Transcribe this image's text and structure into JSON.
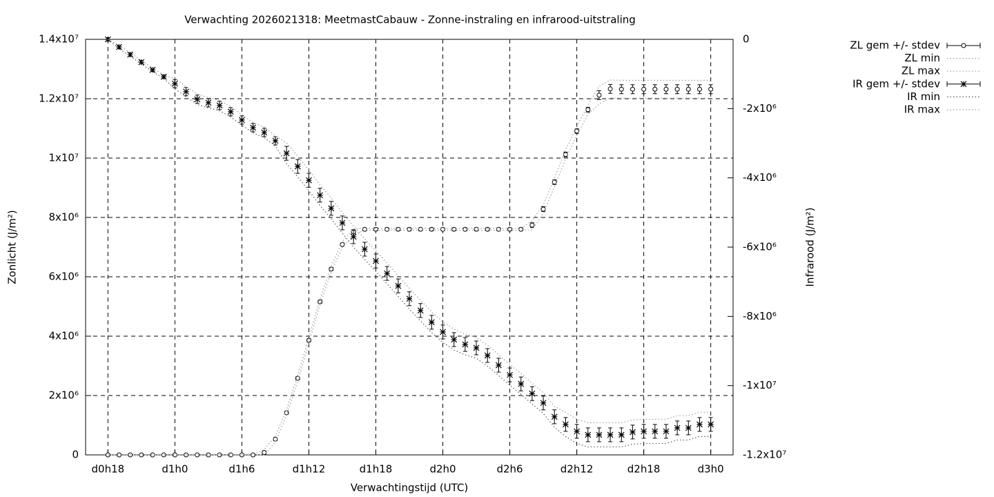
{
  "chart_data": {
    "type": "line",
    "title": "Verwachting 2026021318: MeetmastCabauw - Zonne-instraling en infrarood-uitstraling",
    "xlabel": "Verwachtingstijd (UTC)",
    "ylabel": "Zonlicht (J/m²)",
    "y2label": "Infrarood (J/m²)",
    "grid": true,
    "legend": "outside-right",
    "x": [
      18,
      19,
      20,
      21,
      22,
      23,
      24,
      25,
      26,
      27,
      28,
      29,
      30,
      31,
      32,
      33,
      34,
      35,
      36,
      37,
      38,
      39,
      40,
      41,
      42,
      43,
      44,
      45,
      46,
      47,
      48,
      49,
      50,
      51,
      52,
      53,
      54,
      55,
      56,
      57,
      58,
      59,
      60,
      61,
      62,
      63,
      64,
      65,
      66,
      67,
      68,
      69,
      70,
      71,
      72
    ],
    "xlim": [
      16,
      74
    ],
    "xticks": [
      {
        "value": 18,
        "label": "d0h18"
      },
      {
        "value": 24,
        "label": "d1h0"
      },
      {
        "value": 30,
        "label": "d1h6"
      },
      {
        "value": 36,
        "label": "d1h12"
      },
      {
        "value": 42,
        "label": "d1h18"
      },
      {
        "value": 48,
        "label": "d2h0"
      },
      {
        "value": 54,
        "label": "d2h6"
      },
      {
        "value": 60,
        "label": "d2h12"
      },
      {
        "value": 66,
        "label": "d2h18"
      },
      {
        "value": 72,
        "label": "d3h0"
      }
    ],
    "ylim": [
      0,
      14000000
    ],
    "yticks": [
      0,
      {
        "value": 2000000,
        "label": "2x10⁶"
      },
      {
        "value": 4000000,
        "label": "4x10⁶"
      },
      {
        "value": 6000000,
        "label": "6x10⁶"
      },
      {
        "value": 8000000,
        "label": "8x10⁶"
      },
      {
        "value": 10000000,
        "label": "1x10⁷"
      },
      {
        "value": 12000000,
        "label": "1.2x10⁷"
      },
      {
        "value": 14000000,
        "label": "1.4x10⁷"
      }
    ],
    "y2lim": [
      -12000000,
      0
    ],
    "y2ticks": [
      0,
      {
        "value": -2000000,
        "label": "-2x10⁶"
      },
      {
        "value": -4000000,
        "label": "-4x10⁶"
      },
      {
        "value": -6000000,
        "label": "-6x10⁶"
      },
      {
        "value": -8000000,
        "label": "-8x10⁶"
      },
      {
        "value": -10000000,
        "label": "-1x10⁷"
      },
      {
        "value": -12000000,
        "label": "-1.2x10⁷"
      }
    ],
    "series": [
      {
        "name": "ZL gem +/- stdev",
        "color": "#000000",
        "style": "errorbars",
        "marker": "circle",
        "values": [
          0,
          0,
          0,
          0,
          0,
          0,
          0,
          0,
          0,
          0,
          0,
          0,
          0,
          0,
          80000.0,
          530000.0,
          1420000.0,
          2580000.0,
          3860000.0,
          5160000.0,
          6260000.0,
          7090000.0,
          7510000.0,
          7600000.0,
          7600000.0,
          7600000.0,
          7600000.0,
          7600000.0,
          7600000.0,
          7600000.0,
          7600000.0,
          7600000.0,
          7600000.0,
          7600000.0,
          7600000.0,
          7600000.0,
          7600000.0,
          7600000.0,
          7740000.0,
          8280000.0,
          9190000.0,
          10120000.0,
          10910000.0,
          11630000.0,
          12120000.0,
          12330000.0,
          12320000.0,
          12320000.0,
          12320000.0,
          12320000.0,
          12320000.0,
          12320000.0,
          12320000.0,
          12320000.0,
          12320000.0
        ],
        "errors": [
          0,
          0,
          0,
          0,
          0,
          0,
          0,
          0,
          0,
          0,
          0,
          0,
          0,
          0,
          50000.0,
          50000.0,
          50000.0,
          50000.0,
          50000.0,
          50000.0,
          50000.0,
          50000.0,
          50000.0,
          50000.0,
          50000.0,
          50000.0,
          50000.0,
          50000.0,
          50000.0,
          50000.0,
          50000.0,
          50000.0,
          50000.0,
          50000.0,
          50000.0,
          50000.0,
          50000.0,
          50000.0,
          80000.0,
          80000.0,
          80000.0,
          80000.0,
          80000.0,
          80000.0,
          150000.0,
          150000.0,
          150000.0,
          150000.0,
          150000.0,
          150000.0,
          150000.0,
          150000.0,
          150000.0,
          150000.0,
          150000.0
        ]
      },
      {
        "name": "ZL min",
        "color": "#999999",
        "style": "dotted",
        "values": [
          0,
          0,
          0,
          0,
          0,
          0,
          0,
          0,
          0,
          0,
          0,
          0,
          0,
          0,
          0,
          430000.0,
          1320000.0,
          2480000.0,
          3760000.0,
          5060000.0,
          6160000.0,
          6990000.0,
          7410000.0,
          7570000.0,
          7570000.0,
          7570000.0,
          7570000.0,
          7570000.0,
          7570000.0,
          7570000.0,
          7570000.0,
          7570000.0,
          7570000.0,
          7570000.0,
          7570000.0,
          7570000.0,
          7570000.0,
          7570000.0,
          7590000.0,
          8130000.0,
          9040000.0,
          9970000.0,
          10760000.0,
          11480000.0,
          11820000.0,
          12030000.0,
          12020000.0,
          12020000.0,
          12020000.0,
          12020000.0,
          12020000.0,
          12020000.0,
          12020000.0,
          12020000.0,
          12020000.0
        ]
      },
      {
        "name": "ZL max",
        "color": "#999999",
        "style": "dotted",
        "values": [
          0,
          0,
          0,
          0,
          0,
          0,
          0,
          0,
          0,
          0,
          0,
          0,
          0,
          0,
          180000.0,
          630000.0,
          1520000.0,
          2680000.0,
          3960000.0,
          5260000.0,
          6360000.0,
          7190000.0,
          7610000.0,
          7630000.0,
          7630000.0,
          7630000.0,
          7630000.0,
          7630000.0,
          7630000.0,
          7630000.0,
          7630000.0,
          7630000.0,
          7630000.0,
          7630000.0,
          7630000.0,
          7630000.0,
          7630000.0,
          7630000.0,
          7890000.0,
          8430000.0,
          9340000.0,
          10270000.0,
          11060000.0,
          11780000.0,
          12420000.0,
          12630000.0,
          12620000.0,
          12620000.0,
          12620000.0,
          12620000.0,
          12620000.0,
          12620000.0,
          12620000.0,
          12620000.0,
          12620000.0
        ]
      },
      {
        "name": "IR gem +/- stdev",
        "color": "#000000",
        "style": "errorbars",
        "marker": "star",
        "axis": "y2",
        "values": [
          0,
          -220000.0,
          -440000.0,
          -660000.0,
          -880000.0,
          -1080000.0,
          -1280000.0,
          -1510000.0,
          -1730000.0,
          -1830000.0,
          -1910000.0,
          -2090000.0,
          -2330000.0,
          -2550000.0,
          -2690000.0,
          -2930000.0,
          -3290000.0,
          -3670000.0,
          -4070000.0,
          -4500000.0,
          -4880000.0,
          -5300000.0,
          -5700000.0,
          -6060000.0,
          -6400000.0,
          -6760000.0,
          -7120000.0,
          -7490000.0,
          -7830000.0,
          -8170000.0,
          -8450000.0,
          -8670000.0,
          -8810000.0,
          -8910000.0,
          -9130000.0,
          -9410000.0,
          -9690000.0,
          -9950000.0,
          -10230000.0,
          -10500000.0,
          -10900000.0,
          -11120000.0,
          -11320000.0,
          -11420000.0,
          -11420000.0,
          -11420000.0,
          -11420000.0,
          -11340000.0,
          -11320000.0,
          -11320000.0,
          -11320000.0,
          -11220000.0,
          -11220000.0,
          -11120000.0,
          -11120000.0
        ],
        "errors": [
          50000.0,
          50000.0,
          50000.0,
          50000.0,
          50000.0,
          50000.0,
          120000.0,
          120000.0,
          120000.0,
          120000.0,
          120000.0,
          120000.0,
          120000.0,
          120000.0,
          120000.0,
          120000.0,
          200000.0,
          200000.0,
          200000.0,
          200000.0,
          200000.0,
          200000.0,
          200000.0,
          200000.0,
          200000.0,
          200000.0,
          200000.0,
          200000.0,
          200000.0,
          200000.0,
          200000.0,
          200000.0,
          200000.0,
          200000.0,
          200000.0,
          200000.0,
          200000.0,
          200000.0,
          200000.0,
          200000.0,
          200000.0,
          200000.0,
          200000.0,
          200000.0,
          200000.0,
          200000.0,
          200000.0,
          200000.0,
          200000.0,
          200000.0,
          200000.0,
          200000.0,
          200000.0,
          200000.0,
          200000.0
        ]
      },
      {
        "name": "IR min",
        "color": "#555555",
        "style": "dotted",
        "axis": "y2",
        "values": [
          0,
          -270000.0,
          -490000.0,
          -710000.0,
          -930000.0,
          -1130000.0,
          -1430000.0,
          -1660000.0,
          -1880000.0,
          -1980000.0,
          -2060000.0,
          -2240000.0,
          -2480000.0,
          -2700000.0,
          -2840000.0,
          -3080000.0,
          -3590000.0,
          -3970000.0,
          -4370000.0,
          -4800000.0,
          -5180000.0,
          -5600000.0,
          -6000000.0,
          -6360000.0,
          -6700000.0,
          -7060000.0,
          -7420000.0,
          -7790000.0,
          -8130000.0,
          -8470000.0,
          -8750000.0,
          -8970000.0,
          -9110000.0,
          -9210000.0,
          -9430000.0,
          -9710000.0,
          -9990000.0,
          -10250000.0,
          -10530000.0,
          -10800000.0,
          -11200000.0,
          -11470000.0,
          -11670000.0,
          -11770000.0,
          -11770000.0,
          -11770000.0,
          -11770000.0,
          -11690000.0,
          -11670000.0,
          -11670000.0,
          -11670000.0,
          -11570000.0,
          -11570000.0,
          -11470000.0,
          -11470000.0
        ]
      },
      {
        "name": "IR max",
        "color": "#999999",
        "style": "dotted",
        "axis": "y2",
        "values": [
          0,
          -170000.0,
          -390000.0,
          -610000.0,
          -830000.0,
          -1030000.0,
          -1130000.0,
          -1360000.0,
          -1580000.0,
          -1680000.0,
          -1760000.0,
          -1940000.0,
          -2180000.0,
          -2400000.0,
          -2540000.0,
          -2780000.0,
          -2990000.0,
          -3370000.0,
          -3770000.0,
          -4200000.0,
          -4580000.0,
          -5000000.0,
          -5400000.0,
          -5760000.0,
          -6100000.0,
          -6460000.0,
          -6820000.0,
          -7190000.0,
          -7530000.0,
          -7870000.0,
          -8150000.0,
          -8370000.0,
          -8510000.0,
          -8610000.0,
          -8830000.0,
          -9110000.0,
          -9390000.0,
          -9650000.0,
          -9930000.0,
          -10200000.0,
          -10600000.0,
          -10770000.0,
          -10970000.0,
          -11070000.0,
          -11070000.0,
          -11070000.0,
          -11070000.0,
          -10990000.0,
          -10970000.0,
          -10970000.0,
          -10970000.0,
          -10870000.0,
          -10870000.0,
          -10770000.0,
          -10770000.0
        ]
      }
    ]
  }
}
